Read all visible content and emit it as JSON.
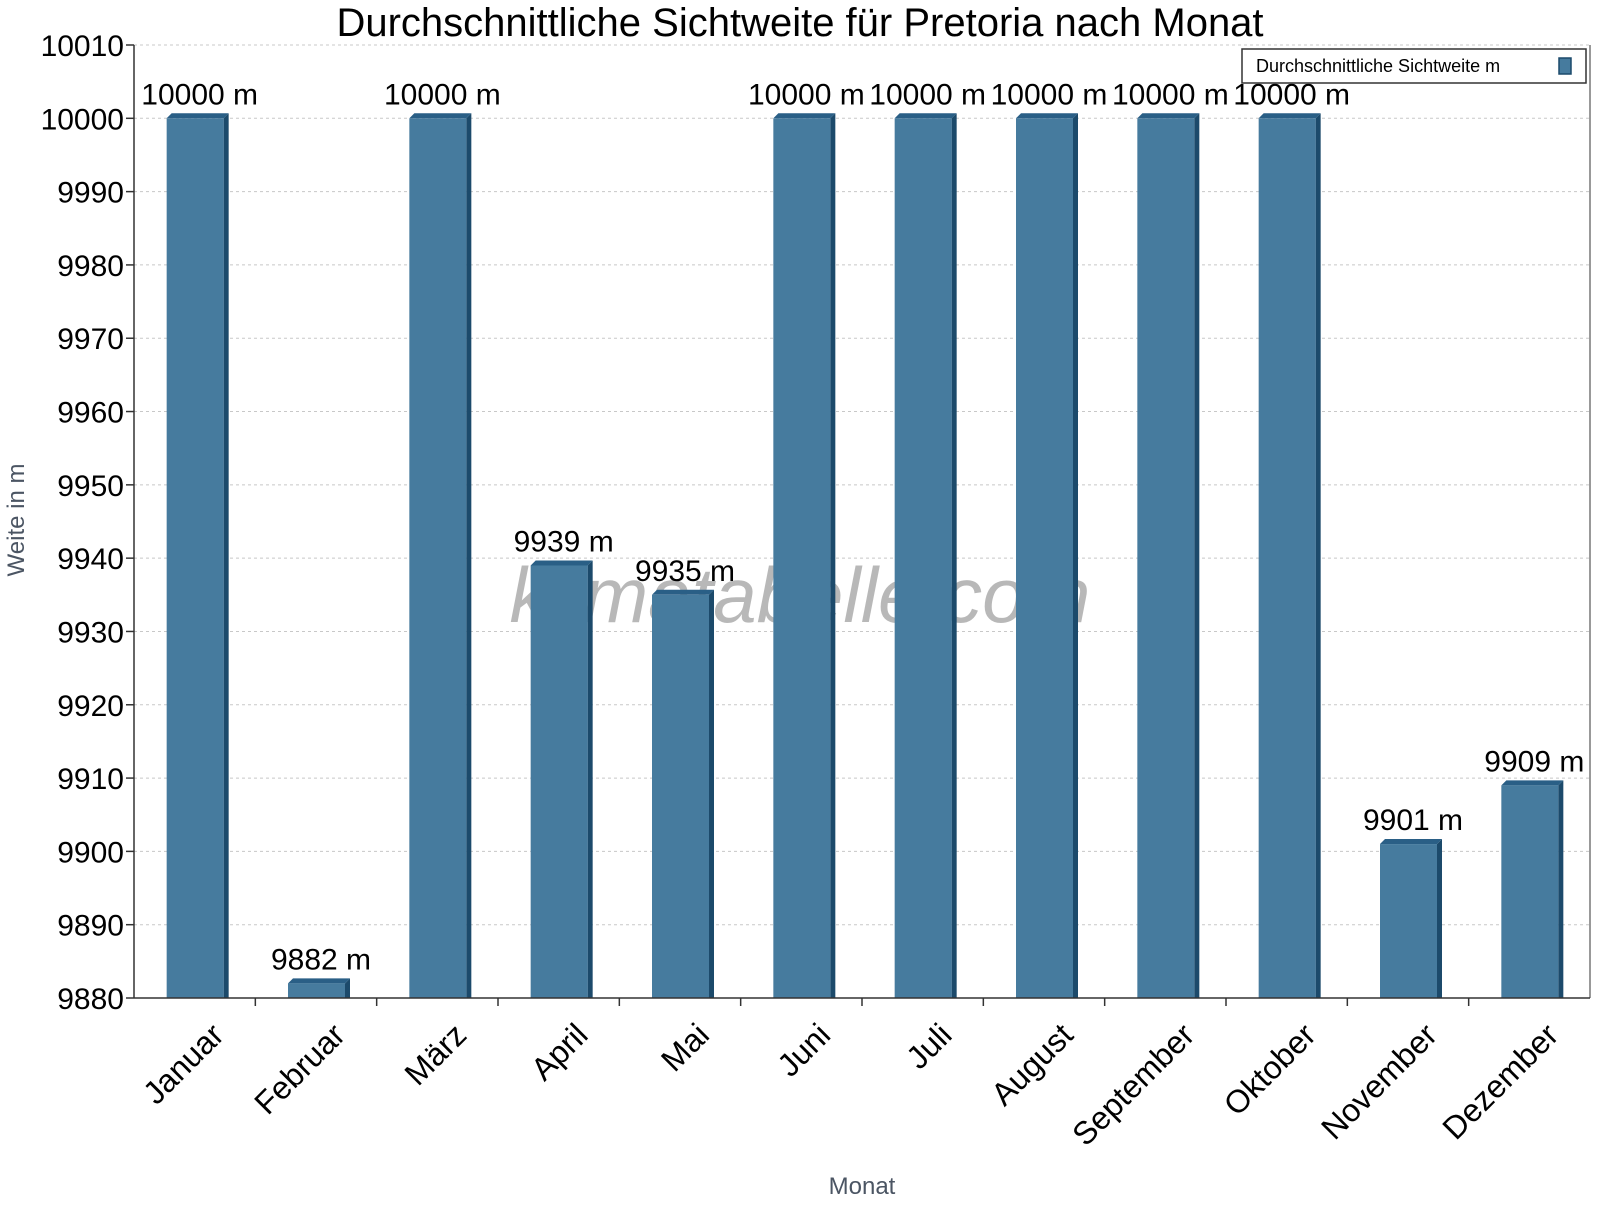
{
  "chart_data": {
    "type": "bar",
    "title": "Durchschnittliche Sichtweite für Pretoria nach Monat",
    "xlabel": "Monat",
    "ylabel": "Weite in m",
    "categories": [
      "Januar",
      "Februar",
      "März",
      "April",
      "Mai",
      "Juni",
      "Juli",
      "August",
      "September",
      "Oktober",
      "November",
      "Dezember"
    ],
    "series": [
      {
        "name": "Durchschnittliche Sichtweite m",
        "values": [
          10000,
          9882,
          10000,
          9939,
          9935,
          10000,
          10000,
          10000,
          10000,
          10000,
          9901,
          9909
        ],
        "labels": [
          "10000 m",
          "9882 m",
          "10000 m",
          "9939 m",
          "9935 m",
          "10000 m",
          "10000 m",
          "10000 m",
          "10000 m",
          "10000 m",
          "9901 m",
          "9909 m"
        ]
      }
    ],
    "ylim": [
      9880,
      10010
    ],
    "yticks": [
      9880,
      9890,
      9900,
      9910,
      9920,
      9930,
      9940,
      9950,
      9960,
      9970,
      9980,
      9990,
      10000,
      10010
    ],
    "grid": true,
    "legend_position": "top-right",
    "watermark": "klimatabelle.com",
    "colors": {
      "bar_front": "#467b9e",
      "bar_side": "#1c4a6b",
      "bar_top": "#2a5f86",
      "grid": "#c8c8c8",
      "axis": "#333333"
    }
  }
}
